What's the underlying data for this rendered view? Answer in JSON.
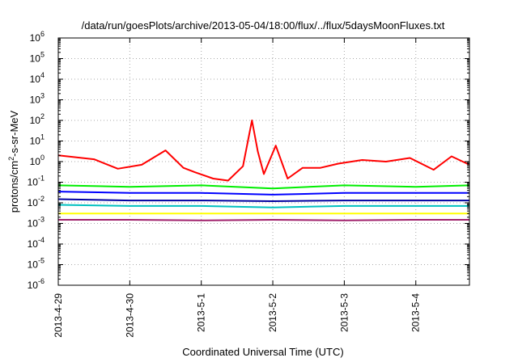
{
  "chart_data": {
    "type": "line",
    "title": "/data/run/goesPlots/archive/2013-05-04/18:00/flux/../flux/5daysMoonFluxes.txt",
    "xlabel": "Coordinated Universal Time (UTC)",
    "ylabel": "protons/cm²-s-sr-MeV",
    "ylabel_parts": {
      "pre": "protons/cm",
      "sup": "2",
      "post": "-s-sr-MeV"
    },
    "yscale": "log",
    "ylim_exponents": [
      -6,
      6
    ],
    "y_ticks": [
      {
        "base": "10",
        "exp": "-6"
      },
      {
        "base": "10",
        "exp": "-5"
      },
      {
        "base": "10",
        "exp": "-4"
      },
      {
        "base": "10",
        "exp": "-3"
      },
      {
        "base": "10",
        "exp": "-2"
      },
      {
        "base": "10",
        "exp": "-1"
      },
      {
        "base": "10",
        "exp": "0"
      },
      {
        "base": "10",
        "exp": "1"
      },
      {
        "base": "10",
        "exp": "2"
      },
      {
        "base": "10",
        "exp": "3"
      },
      {
        "base": "10",
        "exp": "4"
      },
      {
        "base": "10",
        "exp": "5"
      },
      {
        "base": "10",
        "exp": "6"
      }
    ],
    "x_range_days": [
      "2013-04-29",
      "2013-05-04T18:00"
    ],
    "x_ticks": [
      "2013-4-29",
      "2013-4-30",
      "2013-5-1",
      "2013-5-2",
      "2013-5-3",
      "2013-5-4"
    ],
    "grid": true,
    "colors": {
      "red": "#ff0000",
      "green": "#00ee00",
      "blue": "#0000ff",
      "navy": "#0000a0",
      "cyan": "#00c0c0",
      "yellow": "#ffff00",
      "purple": "#a0206b"
    },
    "series": [
      {
        "color": "red",
        "x": [
          "2013-04-29T00:00",
          "2013-04-29T12:00",
          "2013-04-29T20:00",
          "2013-04-30T04:00",
          "2013-04-30T12:00",
          "2013-04-30T18:00",
          "2013-04-30T22:00",
          "2013-05-01T04:00",
          "2013-05-01T09:00",
          "2013-05-01T14:00",
          "2013-05-01T17:00",
          "2013-05-01T19:00",
          "2013-05-01T21:00",
          "2013-05-02T01:00",
          "2013-05-02T05:00",
          "2013-05-02T10:00",
          "2013-05-02T16:00",
          "2013-05-02T22:00",
          "2013-05-03T06:00",
          "2013-05-03T14:00",
          "2013-05-03T22:00",
          "2013-05-04T06:00",
          "2013-05-04T12:00",
          "2013-05-04T18:00"
        ],
        "y": [
          2.0,
          1.3,
          0.45,
          0.7,
          3.5,
          0.5,
          0.3,
          0.15,
          0.12,
          0.6,
          100,
          3.0,
          0.25,
          6.0,
          0.15,
          0.5,
          0.5,
          0.8,
          1.2,
          1.0,
          1.5,
          0.4,
          1.8,
          0.7
        ]
      },
      {
        "color": "green",
        "x": [
          "2013-04-29T00:00",
          "2013-04-30T00:00",
          "2013-05-01T00:00",
          "2013-05-02T00:00",
          "2013-05-03T00:00",
          "2013-05-04T00:00",
          "2013-05-04T18:00"
        ],
        "y": [
          0.07,
          0.06,
          0.07,
          0.05,
          0.07,
          0.06,
          0.07
        ]
      },
      {
        "color": "blue",
        "x": [
          "2013-04-29T00:00",
          "2013-04-30T00:00",
          "2013-05-01T00:00",
          "2013-05-02T00:00",
          "2013-05-03T00:00",
          "2013-05-04T00:00",
          "2013-05-04T18:00"
        ],
        "y": [
          0.035,
          0.03,
          0.03,
          0.025,
          0.03,
          0.03,
          0.03
        ]
      },
      {
        "color": "navy",
        "x": [
          "2013-04-29T00:00",
          "2013-04-30T00:00",
          "2013-05-01T00:00",
          "2013-05-02T00:00",
          "2013-05-03T00:00",
          "2013-05-04T00:00",
          "2013-05-04T18:00"
        ],
        "y": [
          0.015,
          0.013,
          0.013,
          0.012,
          0.013,
          0.013,
          0.013
        ]
      },
      {
        "color": "cyan",
        "x": [
          "2013-04-29T00:00",
          "2013-04-30T00:00",
          "2013-05-01T00:00",
          "2013-05-02T00:00",
          "2013-05-03T00:00",
          "2013-05-04T00:00",
          "2013-05-04T18:00"
        ],
        "y": [
          0.008,
          0.007,
          0.007,
          0.006,
          0.007,
          0.007,
          0.007
        ]
      },
      {
        "color": "yellow",
        "x": [
          "2013-04-29T00:00",
          "2013-04-30T00:00",
          "2013-05-01T00:00",
          "2013-05-02T00:00",
          "2013-05-03T00:00",
          "2013-05-04T00:00",
          "2013-05-04T18:00"
        ],
        "y": [
          0.003,
          0.003,
          0.003,
          0.003,
          0.003,
          0.003,
          0.003
        ]
      },
      {
        "color": "purple",
        "x": [
          "2013-04-29T00:00",
          "2013-04-30T00:00",
          "2013-05-01T00:00",
          "2013-05-02T00:00",
          "2013-05-03T00:00",
          "2013-05-04T00:00",
          "2013-05-04T18:00"
        ],
        "y": [
          0.0015,
          0.0015,
          0.0014,
          0.0015,
          0.0014,
          0.0015,
          0.0015
        ]
      }
    ]
  }
}
